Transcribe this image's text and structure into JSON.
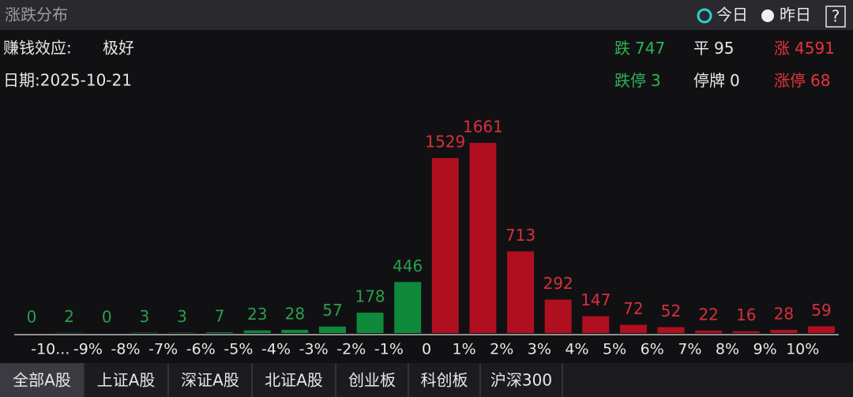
{
  "header": {
    "title": "涨跌分布",
    "options": [
      "今日",
      "昨日"
    ],
    "help": "?"
  },
  "info": {
    "effect_label": "赚钱效应:",
    "effect_value": "极好",
    "date": "日期:2025-10-21"
  },
  "stats": [
    [
      {
        "label": "跌",
        "value": 747,
        "color": "#2fb356"
      },
      {
        "label": "平",
        "value": 95,
        "color": "#e8e8e8"
      },
      {
        "label": "涨",
        "value": 4591,
        "color": "#e8333a"
      }
    ],
    [
      {
        "label": "跌停",
        "value": 3,
        "color": "#2fb356"
      },
      {
        "label": "停牌",
        "value": 0,
        "color": "#e8e8e8"
      },
      {
        "label": "涨停",
        "value": 68,
        "color": "#e8333a"
      }
    ]
  ],
  "chart_data": {
    "type": "bar",
    "boundaries": [
      "-10...",
      "-9%",
      "-8%",
      "-7%",
      "-6%",
      "-5%",
      "-4%",
      "-3%",
      "-2%",
      "-1%",
      "0",
      "1%",
      "2%",
      "3%",
      "4%",
      "5%",
      "6%",
      "7%",
      "8%",
      "9%",
      "10%"
    ],
    "values": [
      0,
      2,
      0,
      3,
      3,
      7,
      23,
      28,
      57,
      178,
      446,
      1529,
      1661,
      713,
      292,
      147,
      72,
      52,
      22,
      16,
      28,
      59
    ],
    "colors": {
      "down": "#0f8a3a",
      "up": "#b00f1f",
      "down_text": "#2a9e4c",
      "up_text": "#d8303a"
    },
    "down_count": 11
  },
  "tabs": [
    "全部A股",
    "上证A股",
    "深证A股",
    "北证A股",
    "创业板",
    "科创板",
    "沪深300"
  ]
}
